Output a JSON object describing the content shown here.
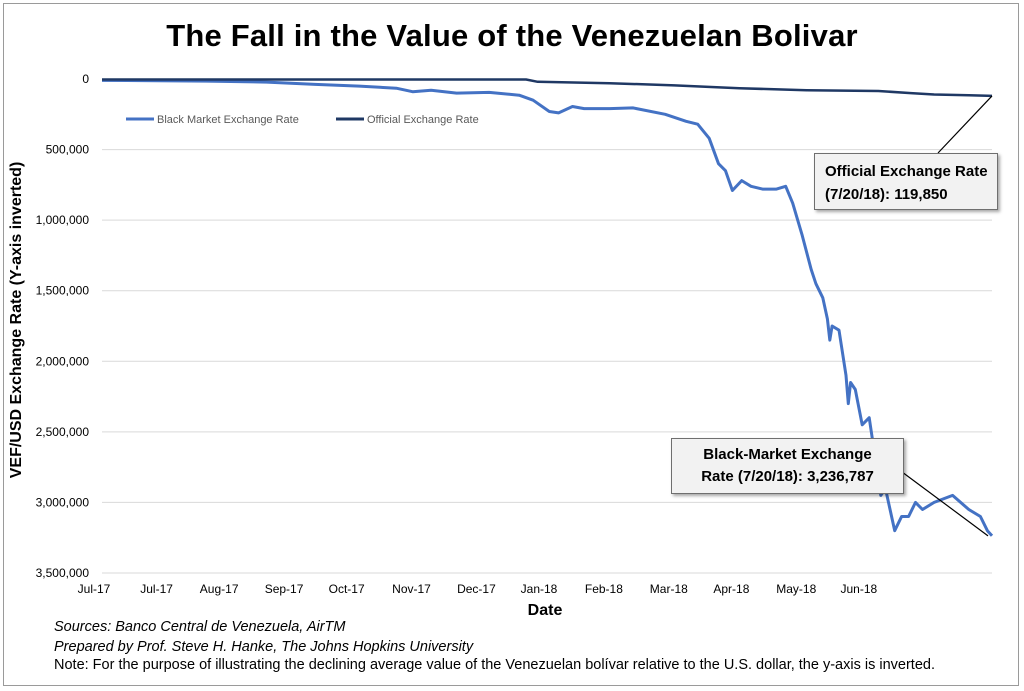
{
  "title": "The Fall in the Value of the Venezuelan Bolivar",
  "footer": {
    "sources": "Sources: Banco Central de Venezuela, AirTM",
    "prepared": "Prepared by Prof. Steve H. Hanke, The Johns Hopkins University",
    "note": "Note: For the purpose of illustrating the declining average value of the Venezuelan bolívar relative to the U.S. dollar, the y-axis is inverted."
  },
  "callouts": {
    "official_line1": "Official Exchange Rate",
    "official_line2": "(7/20/18): 119,850",
    "black_line1": "Black-Market Exchange",
    "black_line2": "Rate (7/20/18): 3,236,787"
  },
  "colors": {
    "black_market": "#4472c4",
    "official": "#1f3864",
    "grid": "#d9d9d9"
  },
  "chart_data": {
    "type": "line",
    "title": "The Fall in the Value of the Venezuelan Bolivar",
    "xlabel": "Date",
    "ylabel": "VEF/USD Exchange  Rate (Y-axis inverted)",
    "ylim": [
      0,
      3500000
    ],
    "y_inverted": true,
    "yticks": [
      0,
      500000,
      1000000,
      1500000,
      2000000,
      2500000,
      3000000,
      3500000
    ],
    "ytick_labels": [
      "0",
      "500,000",
      "1,000,000",
      "1,500,000",
      "2,000,000",
      "2,500,000",
      "3,000,000",
      "3,500,000"
    ],
    "xlim": [
      "2017-07-01",
      "2018-07-20"
    ],
    "xtick_labels": [
      "Jul-17",
      "Jul-17",
      "Aug-17",
      "Sep-17",
      "Oct-17",
      "Nov-17",
      "Dec-17",
      "Jan-18",
      "Feb-18",
      "Mar-18",
      "Apr-18",
      "May-18",
      "Jun-18"
    ],
    "xtick_dates": [
      "2017-07-01",
      "2017-07-28",
      "2017-08-24",
      "2017-09-21",
      "2017-10-18",
      "2017-11-15",
      "2017-12-13",
      "2018-01-09",
      "2018-02-06",
      "2018-03-06",
      "2018-04-02",
      "2018-04-30",
      "2018-05-27"
    ],
    "grid": true,
    "legend": "top-left",
    "series": [
      {
        "name": "Black Market Exchange Rate",
        "points": [
          [
            "2017-07-01",
            10000
          ],
          [
            "2017-07-25",
            12000
          ],
          [
            "2017-08-15",
            15000
          ],
          [
            "2017-09-10",
            22000
          ],
          [
            "2017-10-01",
            38000
          ],
          [
            "2017-10-20",
            50000
          ],
          [
            "2017-11-05",
            65000
          ],
          [
            "2017-11-12",
            90000
          ],
          [
            "2017-11-20",
            80000
          ],
          [
            "2017-12-01",
            100000
          ],
          [
            "2017-12-15",
            95000
          ],
          [
            "2017-12-28",
            115000
          ],
          [
            "2018-01-03",
            150000
          ],
          [
            "2018-01-10",
            230000
          ],
          [
            "2018-01-14",
            240000
          ],
          [
            "2018-01-20",
            195000
          ],
          [
            "2018-01-25",
            210000
          ],
          [
            "2018-02-05",
            210000
          ],
          [
            "2018-02-15",
            205000
          ],
          [
            "2018-03-01",
            250000
          ],
          [
            "2018-03-10",
            300000
          ],
          [
            "2018-03-15",
            320000
          ],
          [
            "2018-03-20",
            420000
          ],
          [
            "2018-03-24",
            600000
          ],
          [
            "2018-03-27",
            650000
          ],
          [
            "2018-03-30",
            790000
          ],
          [
            "2018-04-03",
            720000
          ],
          [
            "2018-04-07",
            760000
          ],
          [
            "2018-04-12",
            780000
          ],
          [
            "2018-04-18",
            780000
          ],
          [
            "2018-04-22",
            760000
          ],
          [
            "2018-04-25",
            880000
          ],
          [
            "2018-04-29",
            1100000
          ],
          [
            "2018-05-03",
            1350000
          ],
          [
            "2018-05-05",
            1450000
          ],
          [
            "2018-05-08",
            1550000
          ],
          [
            "2018-05-10",
            1700000
          ],
          [
            "2018-05-11",
            1850000
          ],
          [
            "2018-05-12",
            1750000
          ],
          [
            "2018-05-15",
            1780000
          ],
          [
            "2018-05-18",
            2100000
          ],
          [
            "2018-05-19",
            2300000
          ],
          [
            "2018-05-20",
            2150000
          ],
          [
            "2018-05-22",
            2200000
          ],
          [
            "2018-05-25",
            2450000
          ],
          [
            "2018-05-28",
            2400000
          ],
          [
            "2018-06-02",
            2950000
          ],
          [
            "2018-06-04",
            2900000
          ],
          [
            "2018-06-08",
            3200000
          ],
          [
            "2018-06-11",
            3100000
          ],
          [
            "2018-06-14",
            3100000
          ],
          [
            "2018-06-17",
            3000000
          ],
          [
            "2018-06-20",
            3050000
          ],
          [
            "2018-06-25",
            3000000
          ],
          [
            "2018-07-03",
            2950000
          ],
          [
            "2018-07-10",
            3050000
          ],
          [
            "2018-07-15",
            3100000
          ],
          [
            "2018-07-18",
            3200000
          ],
          [
            "2018-07-20",
            3236787
          ]
        ]
      },
      {
        "name": "Official Exchange Rate",
        "points": [
          [
            "2017-07-01",
            3345
          ],
          [
            "2017-09-01",
            3345
          ],
          [
            "2017-12-31",
            3345
          ],
          [
            "2018-01-05",
            20000
          ],
          [
            "2018-02-05",
            30000
          ],
          [
            "2018-03-05",
            45000
          ],
          [
            "2018-04-02",
            65000
          ],
          [
            "2018-05-01",
            80000
          ],
          [
            "2018-06-01",
            85000
          ],
          [
            "2018-06-15",
            100000
          ],
          [
            "2018-06-25",
            110000
          ],
          [
            "2018-07-10",
            115000
          ],
          [
            "2018-07-20",
            119850
          ]
        ]
      }
    ]
  }
}
